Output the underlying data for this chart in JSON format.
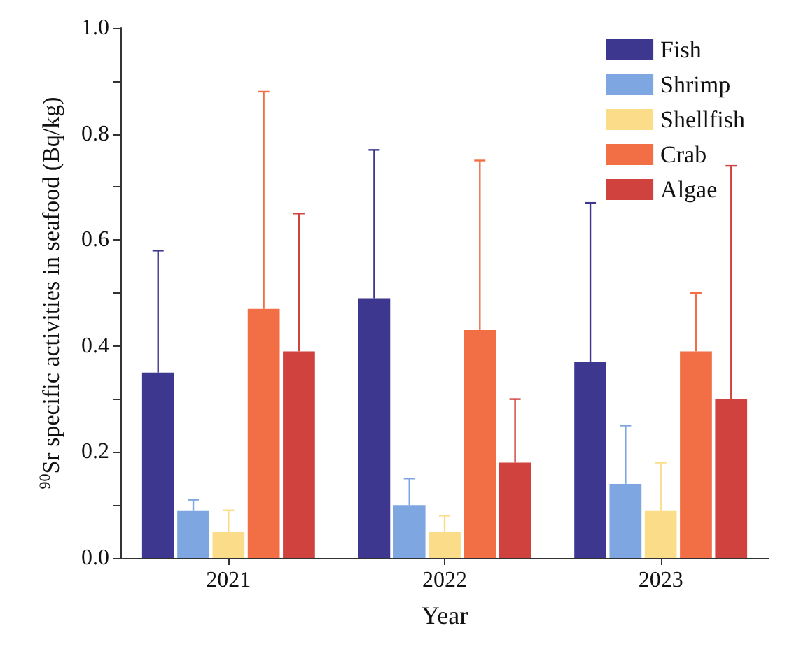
{
  "chart_data": {
    "type": "bar",
    "xlabel": "Year",
    "ylabel": "$^{90}$Sr specific activities in seafood (Bq/kg)",
    "categories": [
      "2021",
      "2022",
      "2023"
    ],
    "series": [
      {
        "name": "Fish",
        "color": "#3d3790",
        "values": [
          0.35,
          0.49,
          0.37
        ],
        "errors": [
          [
            0.35,
            0.58
          ],
          [
            0.49,
            0.77
          ],
          [
            0.37,
            0.67
          ]
        ]
      },
      {
        "name": "Shrimp",
        "color": "#7ea6e0",
        "values": [
          0.09,
          0.1,
          0.14
        ],
        "errors": [
          [
            0.09,
            0.11
          ],
          [
            0.1,
            0.15
          ],
          [
            0.14,
            0.25
          ]
        ]
      },
      {
        "name": "Shellfish",
        "color": "#fbdc88",
        "values": [
          0.05,
          0.05,
          0.09
        ],
        "errors": [
          [
            0.05,
            0.09
          ],
          [
            0.05,
            0.08
          ],
          [
            0.09,
            0.18
          ]
        ]
      },
      {
        "name": "Crab",
        "color": "#f26f45",
        "values": [
          0.47,
          0.43,
          0.39
        ],
        "errors": [
          [
            0.47,
            0.88
          ],
          [
            0.43,
            0.75
          ],
          [
            0.39,
            0.5
          ]
        ]
      },
      {
        "name": "Algae",
        "color": "#d0423e",
        "values": [
          0.39,
          0.18,
          0.3
        ],
        "errors": [
          [
            0.39,
            0.65
          ],
          [
            0.18,
            0.3
          ],
          [
            0.3,
            0.74
          ]
        ]
      }
    ],
    "ylim": [
      0,
      1
    ],
    "yticks": [
      {
        "value": 0,
        "label": "0.0"
      },
      {
        "value": 0.1,
        "label": null
      },
      {
        "value": 0.2,
        "label": "0.2"
      },
      {
        "value": 0.3,
        "label": null
      },
      {
        "value": 0.4,
        "label": "0.4"
      },
      {
        "value": 0.5,
        "label": null
      },
      {
        "value": 0.6,
        "label": "0.6"
      },
      {
        "value": 0.7,
        "label": null
      },
      {
        "value": 0.8,
        "label": "0.8"
      },
      {
        "value": 0.9,
        "label": null
      },
      {
        "value": 1,
        "label": "1.0"
      }
    ],
    "grid": false,
    "legend": "top right"
  }
}
